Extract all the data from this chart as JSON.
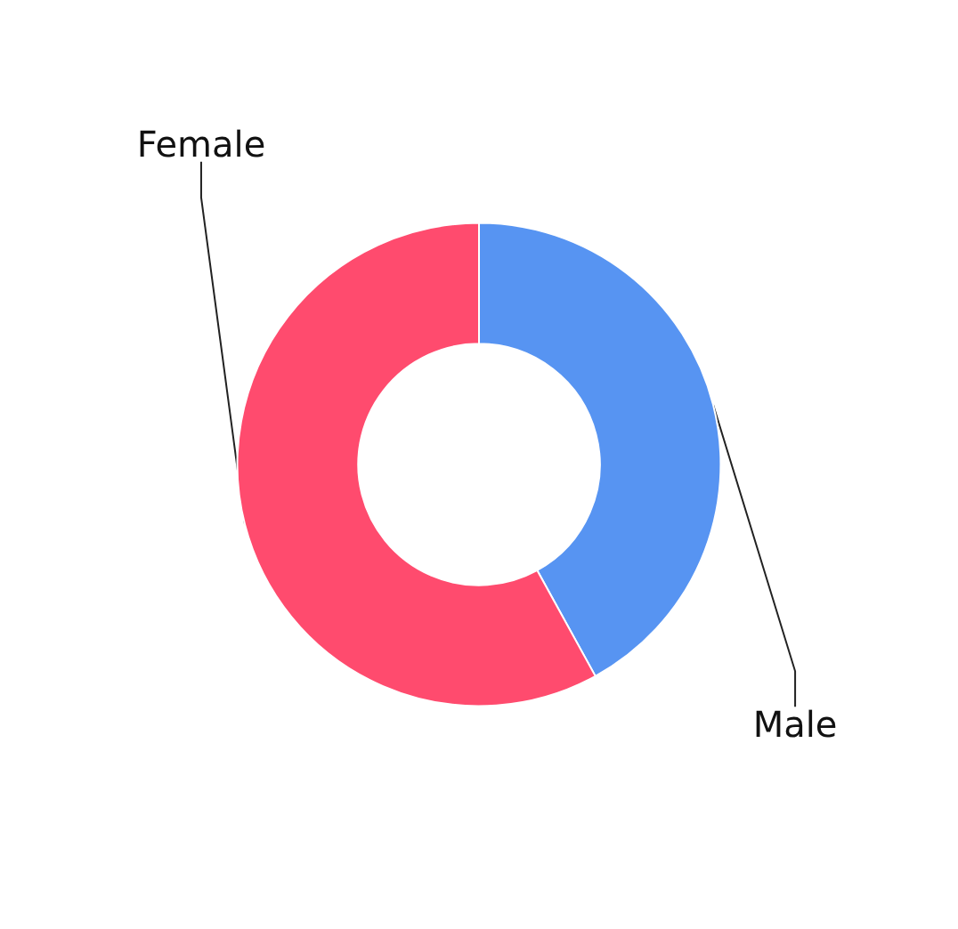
{
  "chart_data": {
    "type": "donut",
    "categories": [
      "Male",
      "Female"
    ],
    "values": [
      42,
      58
    ],
    "colors": [
      "#5794f2",
      "#ff4b6e"
    ],
    "legend": false
  }
}
